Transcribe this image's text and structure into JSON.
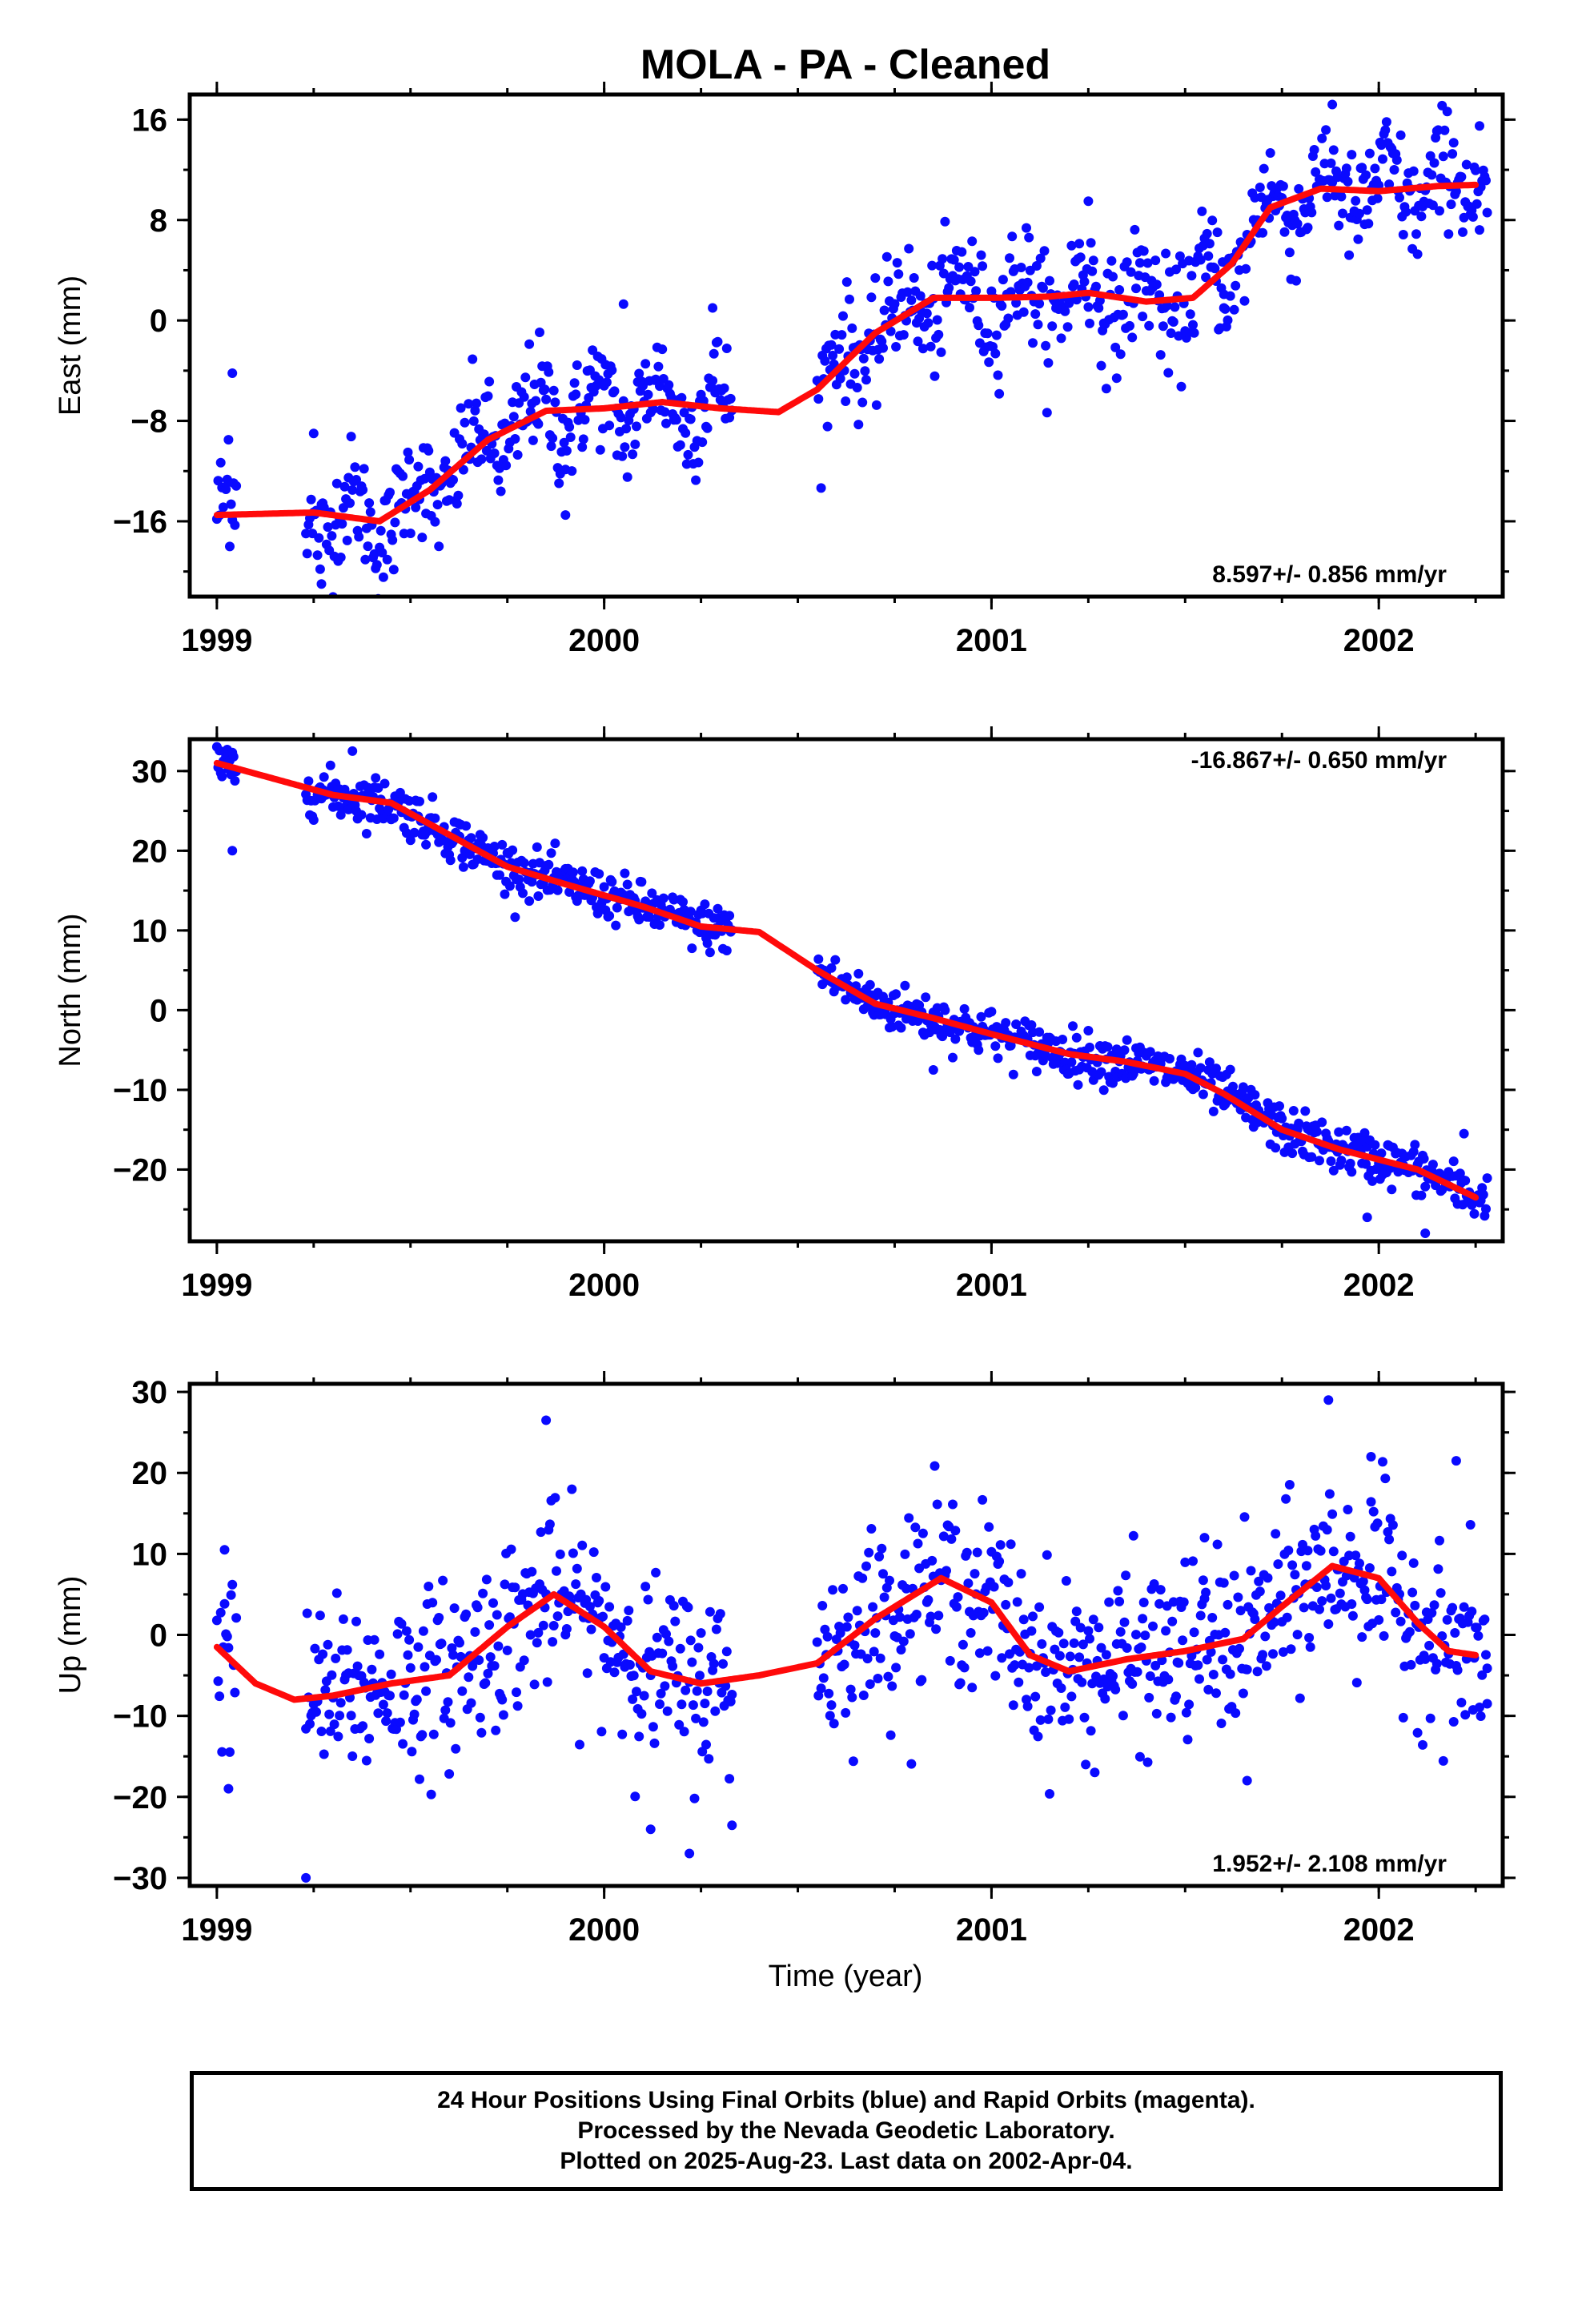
{
  "chart_data": {
    "title": "MOLA  - PA - Cleaned",
    "xlabel": "Time (year)",
    "x_ticks": [
      1999,
      2000,
      2001,
      2002
    ],
    "xlim": [
      1998.93,
      2002.32
    ],
    "series_colors": {
      "points": "#0a0aff",
      "trend": "#ff0a0a"
    },
    "panels": [
      {
        "type": "scatter",
        "ylabel": "East (mm)",
        "ylim": [
          -22,
          18
        ],
        "y_ticks": [
          -16,
          -8,
          0,
          8,
          16
        ],
        "rate_label": "8.597+/- 0.856 mm/yr",
        "rate_position": "bottom-right",
        "trend_x": [
          1999.0,
          1999.25,
          1999.42,
          1999.55,
          1999.7,
          1999.85,
          2000.0,
          2000.15,
          2000.3,
          2000.45,
          2000.55,
          2000.7,
          2000.85,
          2001.0,
          2001.15,
          2001.25,
          2001.4,
          2001.52,
          2001.62,
          2001.72,
          2001.85,
          2002.0,
          2002.15,
          2002.25
        ],
        "trend_y": [
          -15.5,
          -15.3,
          -16.0,
          -13.5,
          -9.5,
          -7.2,
          -7.0,
          -6.5,
          -7.0,
          -7.3,
          -5.5,
          -1.0,
          1.8,
          1.8,
          1.9,
          2.2,
          1.5,
          1.8,
          4.5,
          9.0,
          10.5,
          10.3,
          10.7,
          10.8
        ],
        "points": {
          "count": 930,
          "outliers": [
            [
              1999.04,
              -4.2
            ],
            [
              1999.03,
              -9.5
            ],
            [
              1999.25,
              -9.0
            ],
            [
              1999.27,
              -21
            ],
            [
              2000.05,
              1.3
            ],
            [
              2000.28,
              1.0
            ],
            [
              2001.88,
              17.2
            ],
            [
              2001.25,
              9.5
            ],
            [
              2002.26,
              15.5
            ],
            [
              2001.6,
              1.0
            ],
            [
              1999.9,
              -15.5
            ]
          ]
        }
      },
      {
        "type": "scatter",
        "ylabel": "North (mm)",
        "ylim": [
          -29,
          34
        ],
        "y_ticks": [
          -20,
          -10,
          0,
          10,
          20,
          30
        ],
        "rate_label": "-16.867+/- 0.650 mm/yr",
        "rate_position": "top-right",
        "trend_x": [
          1999.0,
          1999.3,
          1999.45,
          1999.6,
          1999.75,
          1999.9,
          2000.1,
          2000.25,
          2000.4,
          2000.55,
          2000.7,
          2000.85,
          2001.0,
          2001.2,
          2001.35,
          2001.5,
          2001.6,
          2001.75,
          2001.9,
          2002.1,
          2002.25
        ],
        "trend_y": [
          31.0,
          27.0,
          26.0,
          22.0,
          18.0,
          15.8,
          13.0,
          10.5,
          9.8,
          5.0,
          0.8,
          -1.0,
          -3.0,
          -5.5,
          -6.5,
          -8.0,
          -10.5,
          -15.0,
          -17.5,
          -20.0,
          -23.5
        ],
        "points": {
          "count": 930,
          "outliers": [
            [
              1999.04,
              20.0
            ],
            [
              1999.35,
              32.5
            ],
            [
              2001.97,
              -26.0
            ],
            [
              2002.12,
              -28.0
            ],
            [
              2002.22,
              -15.5
            ],
            [
              2000.85,
              -7.5
            ]
          ]
        }
      },
      {
        "type": "scatter",
        "ylabel": "Up (mm)",
        "ylim": [
          -31,
          31
        ],
        "y_ticks": [
          -30,
          -20,
          -10,
          0,
          10,
          20,
          30
        ],
        "rate_label": "1.952+/- 2.108 mm/yr",
        "rate_position": "bottom-right",
        "trend_x": [
          1999.0,
          1999.1,
          1999.2,
          1999.3,
          1999.45,
          1999.6,
          1999.75,
          1999.87,
          2000.0,
          2000.12,
          2000.25,
          2000.4,
          2000.55,
          2000.7,
          2000.87,
          2001.0,
          2001.1,
          2001.2,
          2001.35,
          2001.5,
          2001.65,
          2001.75,
          2001.88,
          2002.0,
          2002.1,
          2002.18,
          2002.25
        ],
        "trend_y": [
          -1.5,
          -6.0,
          -8.0,
          -7.5,
          -6.0,
          -5.0,
          1.0,
          5.0,
          1.0,
          -4.5,
          -6.0,
          -5.0,
          -3.5,
          2.0,
          7.0,
          4.0,
          -2.5,
          -4.5,
          -3.0,
          -2.0,
          -0.5,
          3.5,
          8.5,
          7.0,
          1.5,
          -2.0,
          -2.5
        ],
        "points": {
          "count": 930,
          "outliers": [
            [
              1999.02,
              10.5
            ],
            [
              1999.03,
              -19.0
            ],
            [
              1999.23,
              -30.0
            ],
            [
              1999.85,
              26.5
            ],
            [
              2000.12,
              -24.0
            ],
            [
              2000.22,
              -27.0
            ],
            [
              2000.33,
              -23.5
            ],
            [
              2001.55,
              12.0
            ],
            [
              2001.66,
              -18.0
            ],
            [
              2001.87,
              29.0
            ],
            [
              2001.98,
              22.0
            ],
            [
              2002.2,
              21.5
            ],
            [
              2002.28,
              -8.5
            ]
          ]
        }
      }
    ]
  },
  "footer": {
    "line1": "24 Hour Positions Using Final Orbits (blue) and Rapid Orbits (magenta).",
    "line2": "Processed by the Nevada Geodetic Laboratory.",
    "line3": "Plotted on 2025-Aug-23. Last data on 2002-Apr-04."
  }
}
